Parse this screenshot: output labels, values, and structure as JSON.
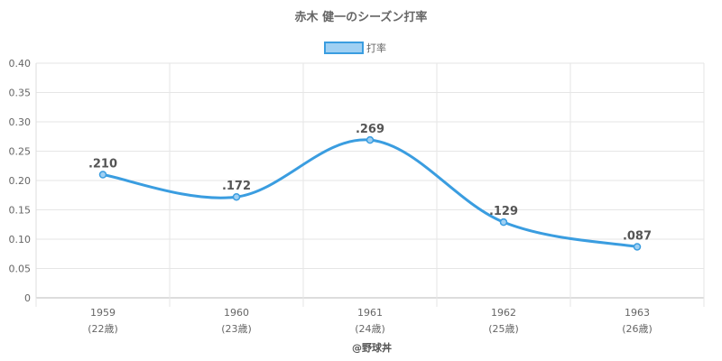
{
  "chart_data": {
    "type": "line",
    "title": "赤木 健一のシーズン打率",
    "categories": [
      "1959",
      "1960",
      "1961",
      "1962",
      "1963"
    ],
    "category_sublabels": [
      "(22歳)",
      "(23歳)",
      "(24歳)",
      "(25歳)",
      "(26歳)"
    ],
    "series": [
      {
        "name": "打率",
        "values": [
          0.21,
          0.172,
          0.269,
          0.129,
          0.087
        ],
        "data_labels": [
          ".210",
          ".172",
          ".269",
          ".129",
          ".087"
        ],
        "color": "#3a9de0",
        "fill_color": "#9fd0f3"
      }
    ],
    "ylim": [
      0,
      0.4
    ],
    "yticks": [
      "0",
      "0.05",
      "0.10",
      "0.15",
      "0.20",
      "0.25",
      "0.30",
      "0.35",
      "0.40"
    ],
    "grid": true,
    "legend_position": "top-center",
    "credit": "@野球丼"
  }
}
